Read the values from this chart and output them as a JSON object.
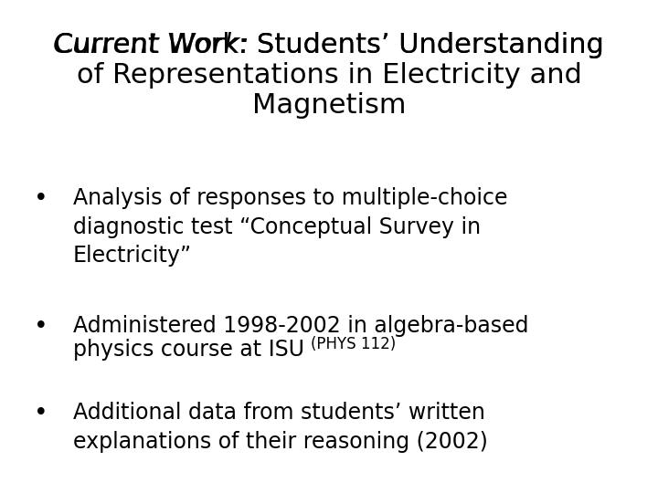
{
  "background_color": "#ffffff",
  "title_italic_part": "Current Work:",
  "title_normal_part": " Students’ Understanding\nof Representations in Electricity and\nMagnetism",
  "bullet1_text": "Analysis of responses to multiple-choice\ndiagnostic test “Conceptual Survey in\nElectricity”",
  "bullet2_line1": "Administered 1998-2002 in algebra-based",
  "bullet2_line2_main": "physics course at ISU ",
  "bullet2_line2_small": "(PHYS 112)",
  "bullet3_text": "Additional data from students’ written\nexplanations of their reasoning (2002)",
  "title_fontsize": 22,
  "bullet_fontsize": 17,
  "small_fontsize": 12,
  "text_color": "#000000",
  "font_family": "DejaVu Sans"
}
